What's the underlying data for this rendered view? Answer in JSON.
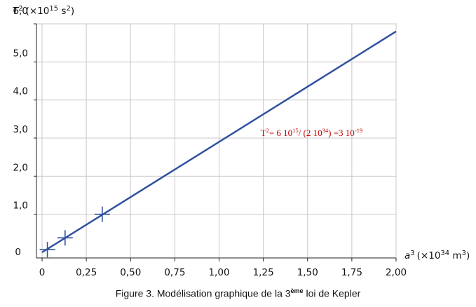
{
  "chart_data": {
    "type": "line",
    "title": "",
    "x_axis": {
      "symbol": "a",
      "exponent": "3",
      "unit_prefix": "(×10",
      "unit_power": "34",
      "unit_suffix": " m",
      "unit_suffix_power": "3",
      "unit_close": ")",
      "range": [
        0,
        2.0
      ],
      "ticks": [
        0,
        0.25,
        0.5,
        0.75,
        1.0,
        1.25,
        1.5,
        1.75,
        2.0
      ],
      "tick_labels": [
        "0",
        "0,25",
        "0,50",
        "0,75",
        "1,00",
        "1,25",
        "1,50",
        "1,75",
        "2,00"
      ]
    },
    "y_axis": {
      "symbol": "T",
      "exponent": "2",
      "unit_prefix": "(×10",
      "unit_power": "15",
      "unit_suffix": " s",
      "unit_suffix_power": "2",
      "unit_close": ")",
      "range": [
        0,
        6.0
      ],
      "ticks": [
        0,
        1.0,
        2.0,
        3.0,
        4.0,
        5.0,
        6.0
      ],
      "tick_labels": [
        "0",
        "1,0",
        "2,0",
        "3,0",
        "4,0",
        "5,0",
        "6,0"
      ]
    },
    "grid": true,
    "series": [
      {
        "kind": "line",
        "color": "#2f4f9f",
        "x": [
          0,
          2.0
        ],
        "y": [
          0,
          5.8
        ]
      },
      {
        "kind": "markers",
        "marker": "plus",
        "color": "#2f4f9f",
        "x": [
          0.03,
          0.13,
          0.34
        ],
        "y": [
          0.07,
          0.38,
          1.0
        ]
      }
    ],
    "annotation": {
      "color": "#c00000",
      "text": "T2= 6 1015/ (2 1034) =3 10-19",
      "parts": {
        "a": "T",
        "a_sup": "2",
        "b": "= 6 10",
        "b_sup": "15",
        "c": "/ (2 10",
        "c_sup": "34",
        "d": ") =3 10",
        "d_sup": "-19"
      },
      "at": [
        1.25,
        3.2
      ]
    }
  },
  "caption": {
    "before": "Figure 3. Modélisation graphique de la 3",
    "sup": "ème",
    "after": " loi de Kepler"
  }
}
